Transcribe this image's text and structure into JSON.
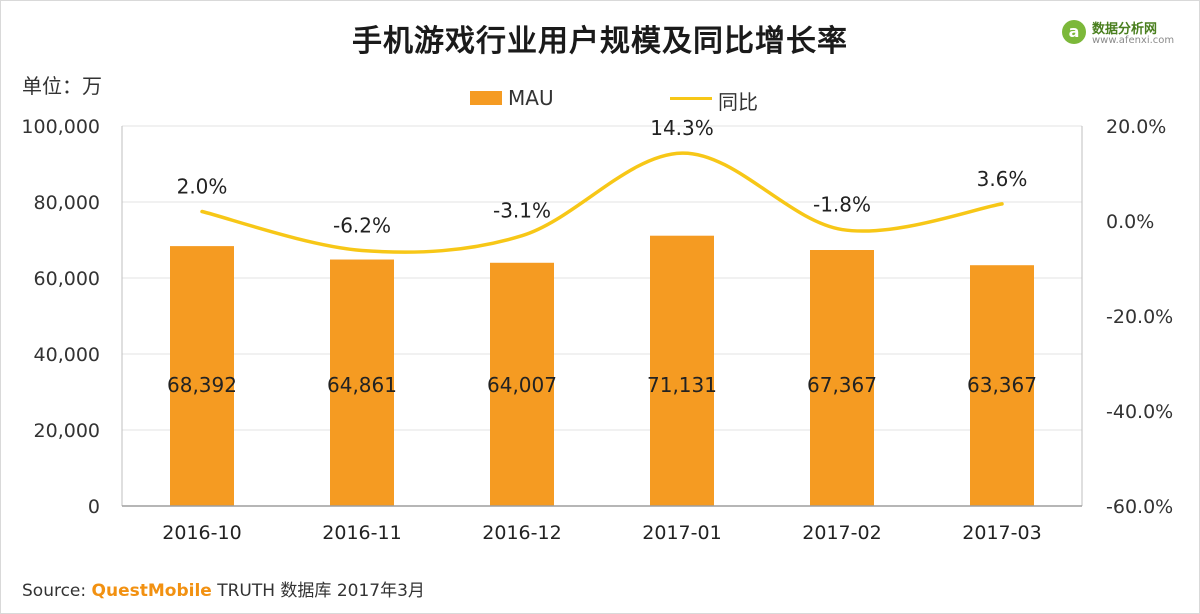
{
  "title": "手机游戏行业用户规模及同比增长率",
  "logo": {
    "mark": "a",
    "name": "数据分析网",
    "url": "www.afenxi.com"
  },
  "unit": "单位：万",
  "source": {
    "prefix": "Source:",
    "brand": "QuestMobile",
    "suffix": "TRUTH 数据库 2017年3月"
  },
  "chart_data": {
    "type": "bar",
    "categories": [
      "2016-10",
      "2016-11",
      "2016-12",
      "2017-01",
      "2017-02",
      "2017-03"
    ],
    "series": [
      {
        "name": "MAU",
        "type": "bar",
        "axis": "left",
        "color": "#f59b22",
        "values": [
          68392,
          64861,
          64007,
          71131,
          67367,
          63367
        ],
        "labels": [
          "68,392",
          "64,861",
          "64,007",
          "71,131",
          "67,367",
          "63,367"
        ]
      },
      {
        "name": "同比",
        "type": "line",
        "axis": "right",
        "color": "#f7c717",
        "values": [
          2.0,
          -6.2,
          -3.1,
          14.3,
          -1.8,
          3.6
        ],
        "labels": [
          "2.0%",
          "-6.2%",
          "-3.1%",
          "14.3%",
          "-1.8%",
          "3.6%"
        ]
      }
    ],
    "y_left": {
      "min": 0,
      "max": 100000,
      "ticks": [
        0,
        20000,
        40000,
        60000,
        80000,
        100000
      ],
      "tick_labels": [
        "0",
        "20,000",
        "40,000",
        "60,000",
        "80,000",
        "100,000"
      ]
    },
    "y_right": {
      "min": -60,
      "max": 20,
      "ticks": [
        -60,
        -40,
        -20,
        0,
        20
      ],
      "tick_labels": [
        "-60.0%",
        "-40.0%",
        "-20.0%",
        "0.0%",
        "20.0%"
      ]
    },
    "grid": true,
    "legend": "top-center"
  }
}
